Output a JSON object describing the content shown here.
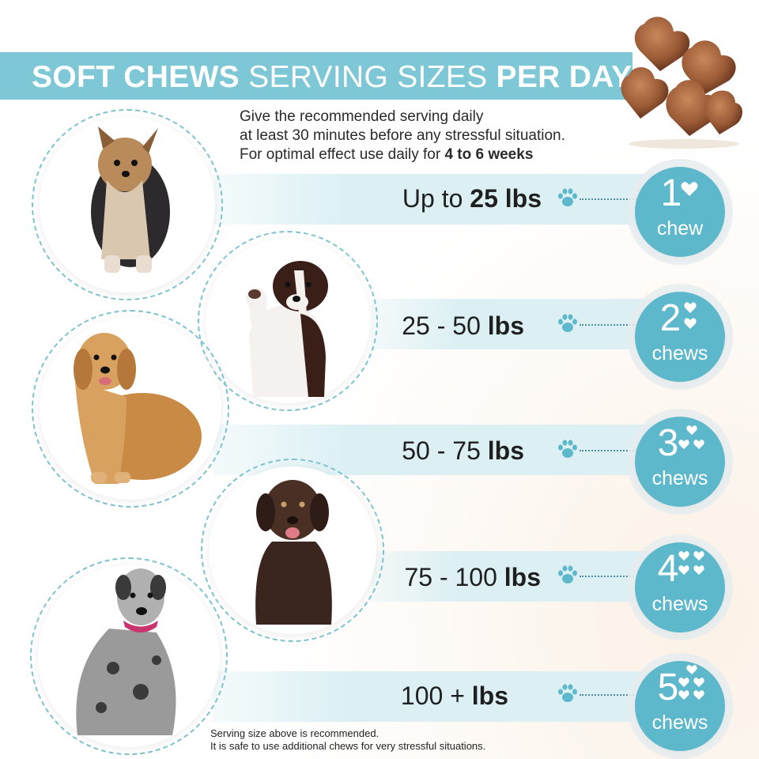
{
  "header": {
    "title_bold_1": "SOFT CHEWS",
    "title_light": "SERVING SIZES",
    "title_bold_2": "PER DAY"
  },
  "intro": {
    "line1": "Give the recommended serving daily",
    "line2": "at least 30 minutes before any stressful situation.",
    "line3_prefix": "For optimal effect use daily for ",
    "line3_bold": "4 to 6 weeks"
  },
  "rows": [
    {
      "weight_prefix": "Up to ",
      "weight_bold": "25 lbs",
      "count": "1",
      "unit": "chew"
    },
    {
      "weight_prefix": "25 - 50 ",
      "weight_bold": "lbs",
      "count": "2",
      "unit": "chews"
    },
    {
      "weight_prefix": "50 - 75 ",
      "weight_bold": "lbs",
      "count": "3",
      "unit": "chews"
    },
    {
      "weight_prefix": "75 - 100 ",
      "weight_bold": "lbs",
      "count": "4",
      "unit": "chews"
    },
    {
      "weight_prefix": "100 + ",
      "weight_bold": "lbs",
      "count": "5",
      "unit": "chews"
    }
  ],
  "footnote": {
    "line1": "Serving size above is recommended.",
    "line2": "It is safe to use additional chews for very stressful situations."
  },
  "icons": {
    "paw": "paw-icon",
    "heart": "heart-icon"
  },
  "colors": {
    "accent": "#5eb8cc",
    "band": "#7ec7d6",
    "row_band": "#dcf0f4"
  }
}
